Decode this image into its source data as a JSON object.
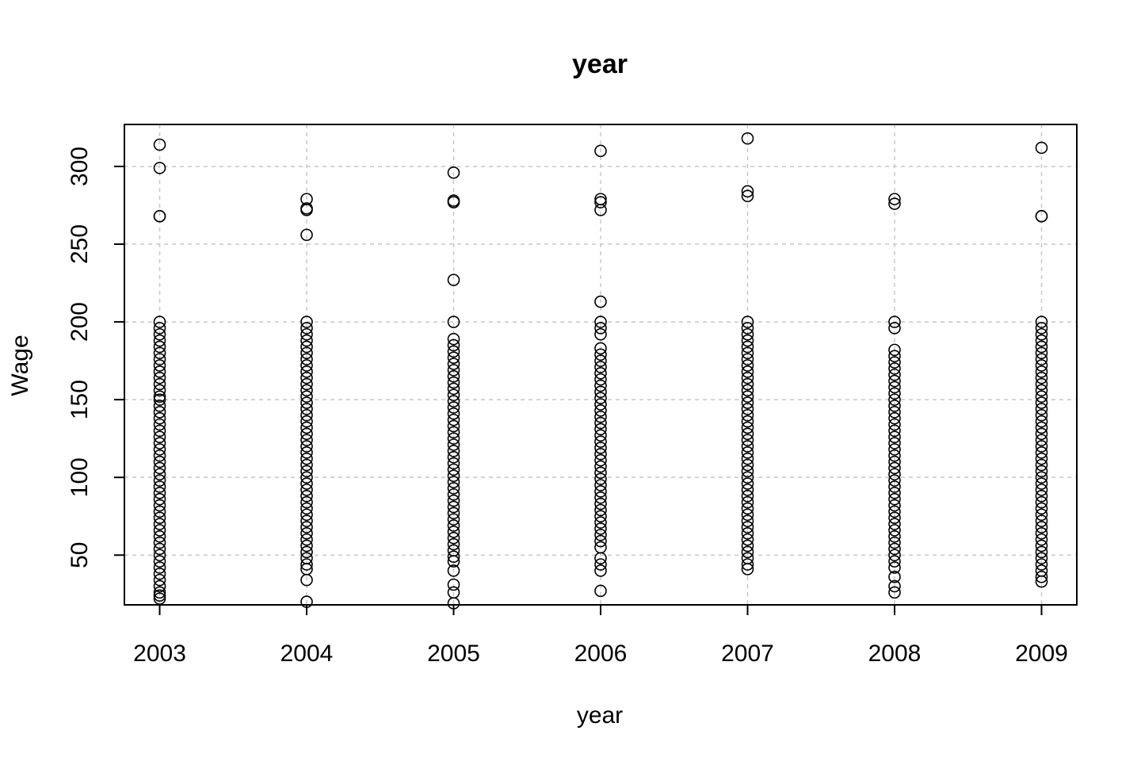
{
  "chart_data": {
    "type": "scatter",
    "title": "year",
    "xlabel": "year",
    "ylabel": "Wage",
    "x_ticks": [
      2003,
      2004,
      2005,
      2006,
      2007,
      2008,
      2009
    ],
    "y_ticks": [
      50,
      100,
      150,
      200,
      250,
      300
    ],
    "xlim": [
      2002.76,
      2009.24
    ],
    "ylim": [
      18,
      327
    ],
    "grid": true,
    "legend": "none",
    "marker": "open-circle",
    "points": [
      {
        "x": 2003,
        "y": [
          314,
          299,
          268,
          268,
          200,
          196,
          192,
          188,
          184,
          180,
          176,
          172,
          168,
          164,
          160,
          156,
          152,
          150,
          146,
          142,
          138,
          134,
          130,
          126,
          122,
          118,
          114,
          110,
          106,
          102,
          98,
          94,
          90,
          86,
          82,
          78,
          74,
          70,
          66,
          62,
          58,
          54,
          50,
          46,
          42,
          38,
          34,
          30,
          26,
          24,
          22
        ]
      },
      {
        "x": 2004,
        "y": [
          279,
          273,
          272,
          256,
          200,
          196,
          192,
          188,
          184,
          180,
          176,
          172,
          168,
          164,
          160,
          156,
          152,
          148,
          144,
          140,
          136,
          132,
          128,
          124,
          120,
          116,
          112,
          108,
          104,
          100,
          96,
          92,
          88,
          84,
          80,
          76,
          72,
          68,
          64,
          60,
          56,
          52,
          48,
          44,
          41,
          34,
          20
        ]
      },
      {
        "x": 2005,
        "y": [
          296,
          278,
          277,
          227,
          200,
          189,
          185,
          181,
          177,
          173,
          169,
          165,
          161,
          157,
          153,
          149,
          145,
          141,
          137,
          133,
          129,
          125,
          121,
          117,
          113,
          109,
          105,
          101,
          97,
          93,
          89,
          85,
          81,
          77,
          73,
          69,
          65,
          61,
          57,
          53,
          49,
          46,
          40,
          31,
          26,
          19
        ]
      },
      {
        "x": 2006,
        "y": [
          310,
          279,
          277,
          272,
          213,
          200,
          196,
          192,
          183,
          179,
          175,
          171,
          167,
          163,
          159,
          155,
          151,
          147,
          143,
          139,
          135,
          131,
          127,
          123,
          119,
          115,
          111,
          107,
          103,
          99,
          95,
          91,
          87,
          83,
          79,
          75,
          71,
          67,
          63,
          59,
          55,
          48,
          44,
          40,
          27
        ]
      },
      {
        "x": 2007,
        "y": [
          318,
          284,
          281,
          200,
          196,
          192,
          188,
          184,
          180,
          176,
          172,
          168,
          164,
          160,
          156,
          152,
          148,
          144,
          140,
          136,
          132,
          128,
          124,
          120,
          116,
          112,
          108,
          104,
          100,
          96,
          92,
          88,
          84,
          80,
          76,
          72,
          68,
          64,
          60,
          56,
          52,
          48,
          44,
          41
        ]
      },
      {
        "x": 2008,
        "y": [
          279,
          276,
          200,
          196,
          182,
          178,
          174,
          170,
          166,
          162,
          158,
          154,
          150,
          146,
          142,
          138,
          134,
          130,
          126,
          122,
          118,
          114,
          110,
          106,
          102,
          98,
          94,
          90,
          86,
          82,
          78,
          74,
          70,
          66,
          62,
          58,
          54,
          50,
          46,
          42,
          36,
          30,
          26
        ]
      },
      {
        "x": 2009,
        "y": [
          312,
          268,
          268,
          200,
          196,
          192,
          188,
          184,
          180,
          176,
          172,
          168,
          164,
          160,
          156,
          152,
          148,
          144,
          140,
          136,
          132,
          128,
          124,
          120,
          116,
          112,
          108,
          104,
          100,
          96,
          92,
          88,
          84,
          80,
          76,
          72,
          68,
          64,
          60,
          56,
          52,
          48,
          44,
          40,
          36,
          33
        ]
      }
    ]
  }
}
